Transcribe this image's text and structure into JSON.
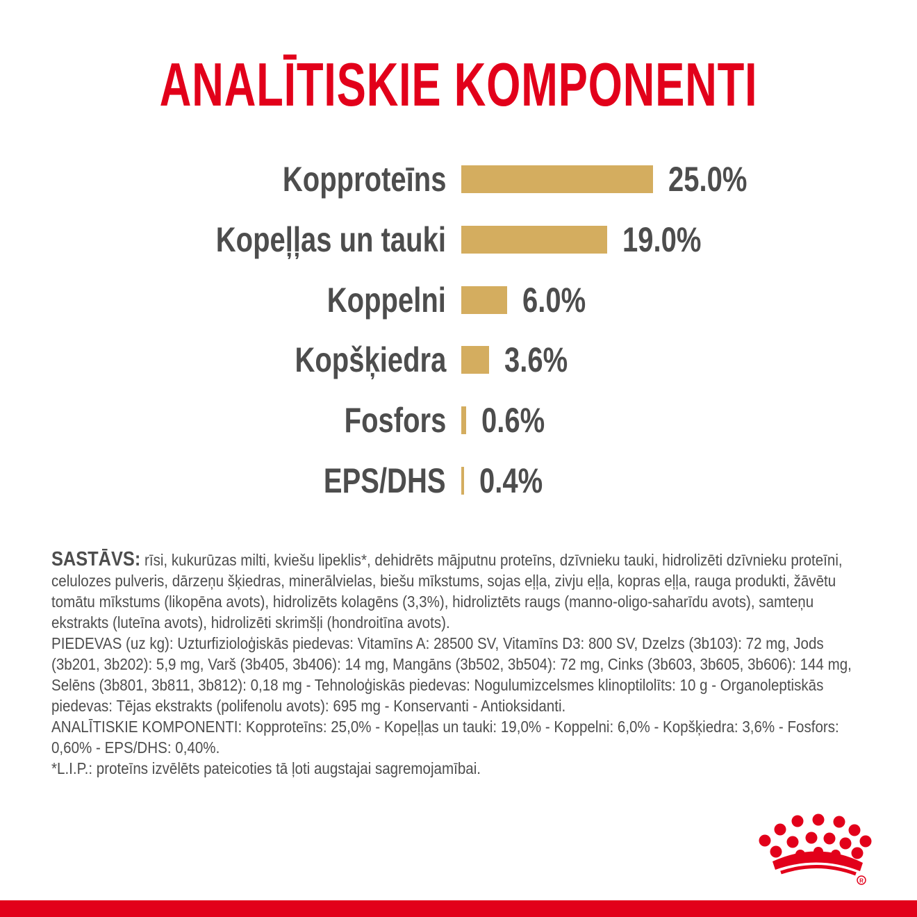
{
  "colors": {
    "brand_red": "#e2001a",
    "bar_gold": "#d4ad5f",
    "text_gray": "#4d4d4d"
  },
  "icons": {
    "brand_logo": "crown-logo-icon",
    "registered_mark": "registered-icon"
  },
  "title": "ANALĪTISKIE KOMPONENTI",
  "chart_data": {
    "type": "bar",
    "orientation": "horizontal",
    "title": "ANALĪTISKIE KOMPONENTI",
    "categories": [
      "Kopproteīns",
      "Kopeļļas un tauki",
      "Koppelni",
      "Kopšķiedra",
      "Fosfors",
      "EPS/DHS"
    ],
    "values": [
      25.0,
      19.0,
      6.0,
      3.6,
      0.6,
      0.4
    ],
    "value_labels": [
      "25.0%",
      "19.0%",
      "6.0%",
      "3.6%",
      "0.6%",
      "0.4%"
    ],
    "unit": "%",
    "grid": false,
    "legend": "none"
  },
  "composition": {
    "lead": "SASTĀVS:",
    "ingredients": " rīsi, kukurūzas milti, kviešu lipeklis*, dehidrēts mājputnu proteīns, dzīvnieku tauki, hidrolizēti dzīvnieku proteīni, celulozes pulveris, dārzeņu šķiedras, minerālvielas, biešu mīkstums, sojas eļļa, zivju eļļa, kopras eļļa, rauga produkti, žāvētu tomātu mīkstums (likopēna avots), hidrolizēts kolagēns (3,3%), hidroliztēts raugs (manno-oligo-saharīdu avots), samteņu ekstrakts (luteīna avots), hidrolizēti skrimšļi (hondroitīna avots).",
    "additives": "PIEDEVAS (uz kg): Uzturfizioloģiskās piedevas: Vitamīns A: 28500 SV, Vitamīns D3: 800 SV, Dzelzs (3b103): 72 mg, Jods (3b201, 3b202): 5,9 mg, Varš (3b405, 3b406): 14 mg, Mangāns (3b502, 3b504): 72 mg, Cinks (3b603, 3b605, 3b606): 144 mg, Selēns (3b801, 3b811, 3b812): 0,18 mg - Tehnoloģiskās piedevas: Nogulumizcelsmes klinoptilolīts: 10 g - Organoleptiskās piedevas: Tējas ekstrakts (polifenolu avots): 695 mg - Konservanti - Antioksidanti.",
    "analytical": "ANALĪTISKIE KOMPONENTI: Kopproteīns: 25,0% - Kopeļļas un tauki: 19,0% - Koppelni: 6,0% - Kopšķiedra: 3,6% - Fosfors: 0,60% - EPS/DHS: 0,40%.",
    "footnote": "*L.I.P.: proteīns izvēlēts pateicoties tā ļoti augstajai sagremojamībai."
  }
}
